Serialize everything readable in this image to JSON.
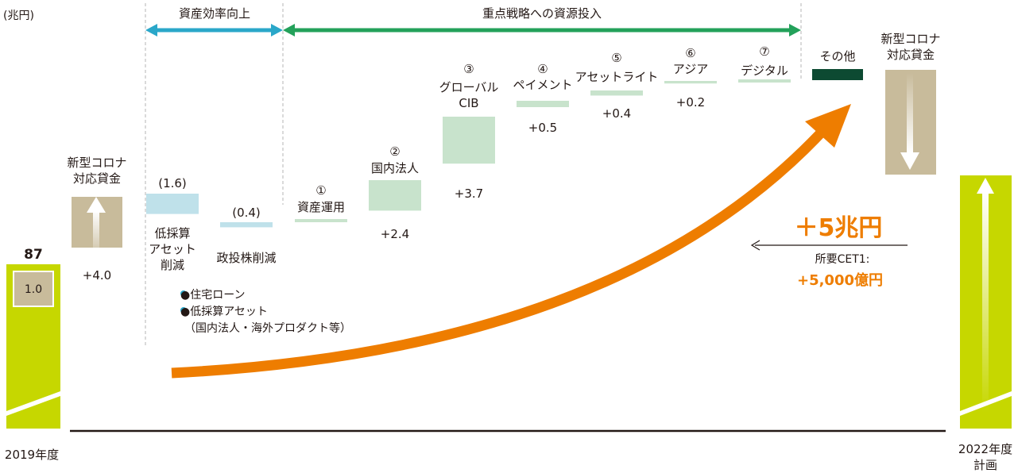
{
  "chart_data": {
    "type": "bar",
    "unit_label": "(兆円)",
    "start": {
      "label": "2019年度",
      "total_label": "87",
      "inner_value": "1.0"
    },
    "end": {
      "label_line1": "2022年度",
      "label_line2": "計画"
    },
    "groups": [
      {
        "label": "資産効率向上"
      },
      {
        "label": "重点戦略への資源投入"
      }
    ],
    "steps": [
      {
        "name": "covid-loans-start",
        "label_lines": [
          "新型コロナ",
          "対応貸金"
        ],
        "value": 4.0,
        "value_label": "+4.0",
        "color": "#c8bb9b"
      },
      {
        "name": "low-margin-assets",
        "label_lines": [
          "低採算",
          "アセット",
          "削減"
        ],
        "value": -1.6,
        "value_label": "(1.6)",
        "color": "#bfe1ea"
      },
      {
        "name": "strategic-shares",
        "label_lines": [
          "政投株削減"
        ],
        "value": -0.4,
        "value_label": "(0.4)",
        "color": "#bfe1ea"
      },
      {
        "name": "asset-management",
        "number": "①",
        "label_lines": [
          "資産運用"
        ],
        "value": 0.0,
        "value_label": "",
        "color": "#c8e3cc"
      },
      {
        "name": "domestic-corporate",
        "number": "②",
        "label_lines": [
          "国内法人"
        ],
        "value": 2.4,
        "value_label": "+2.4",
        "color": "#c8e3cc"
      },
      {
        "name": "global-cib",
        "number": "③",
        "label_lines": [
          "グローバル",
          "CIB"
        ],
        "value": 3.7,
        "value_label": "+3.7",
        "color": "#c8e3cc"
      },
      {
        "name": "payment",
        "number": "④",
        "label_lines": [
          "ペイメント"
        ],
        "value": 0.5,
        "value_label": "+0.5",
        "color": "#c8e3cc"
      },
      {
        "name": "asset-light",
        "number": "⑤",
        "label_lines": [
          "アセットライト"
        ],
        "value": 0.4,
        "value_label": "+0.4",
        "color": "#c8e3cc"
      },
      {
        "name": "asia",
        "number": "⑥",
        "label_lines": [
          "アジア"
        ],
        "value": 0.2,
        "value_label": "+0.2",
        "color": "#c8e3cc"
      },
      {
        "name": "digital",
        "number": "⑦",
        "label_lines": [
          "デジタル"
        ],
        "value": 0.0,
        "value_label": "",
        "color": "#c8e3cc"
      },
      {
        "name": "other",
        "label_lines": [
          "その他"
        ],
        "value": null,
        "value_label": "",
        "color": "#0d4a32"
      },
      {
        "name": "covid-loans-end",
        "label_lines": [
          "新型コロナ",
          "対応貸金"
        ],
        "value": null,
        "value_label": "",
        "color": "#c8bb9b"
      }
    ],
    "notes": [
      "●住宅ローン",
      "●低採算アセット",
      "（国内法人・海外プロダクト等）"
    ],
    "highlight": {
      "growth": "＋5兆円",
      "cet1_label": "所要CET1:",
      "cet1_value": "+5,000億円"
    },
    "colors": {
      "total_bar": "#c6d700",
      "group1_arrow": "#2aa7c9",
      "group2_arrow": "#23a15a",
      "growth_arrow": "#ee7d00",
      "axis": "#231815"
    }
  }
}
